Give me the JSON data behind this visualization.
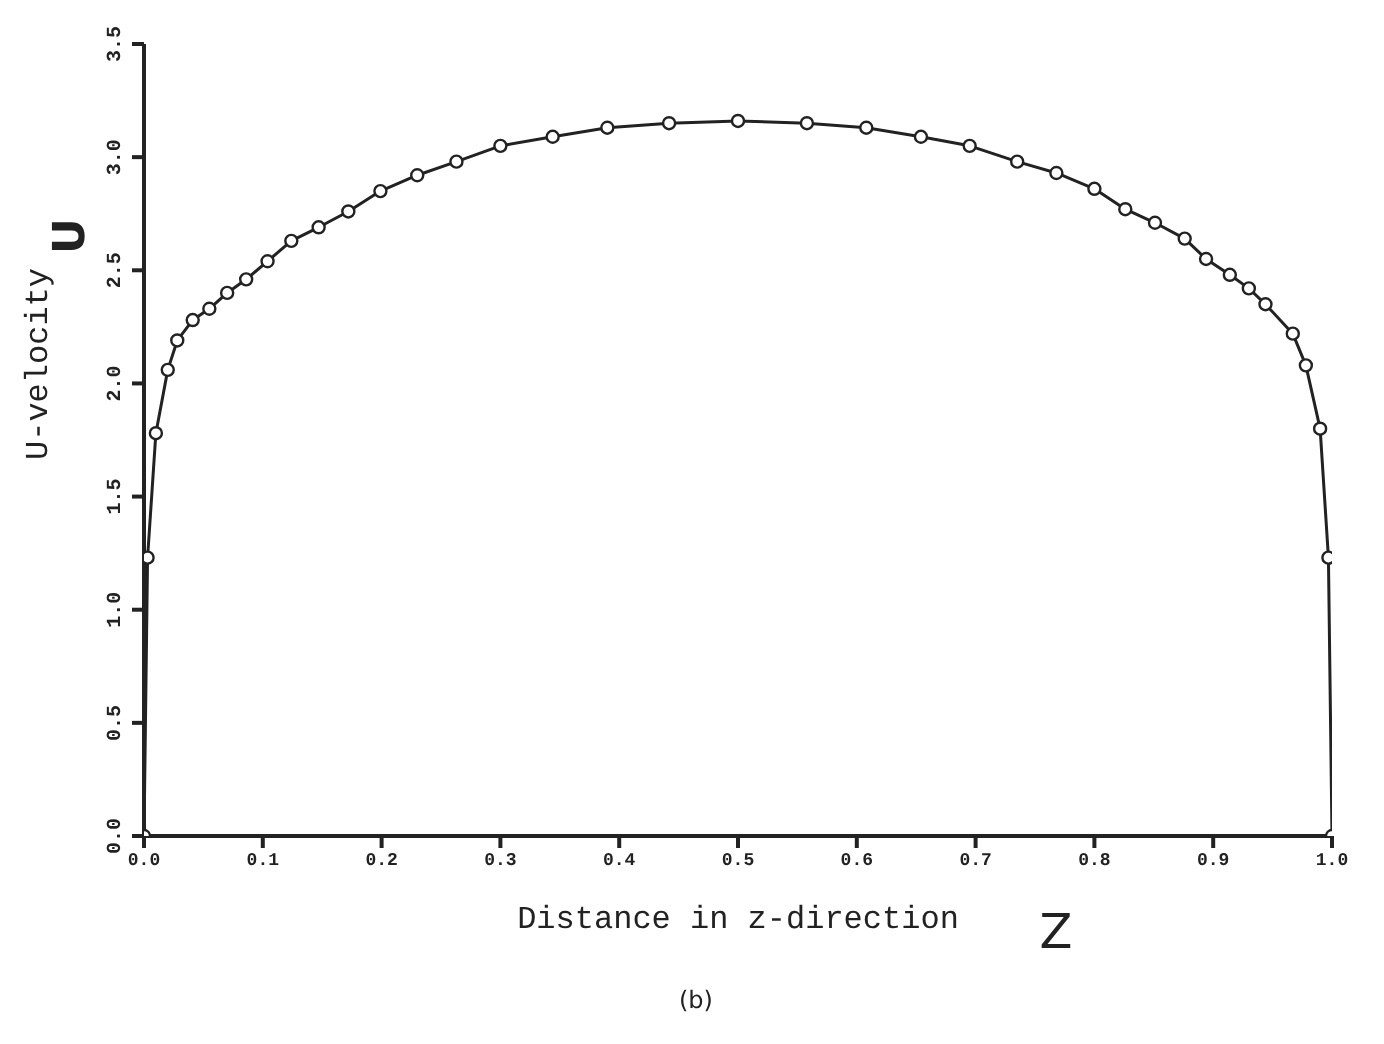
{
  "chart_data": {
    "type": "line",
    "xlabel": "Distance in z-direction",
    "ylabel": "U-velocity",
    "annotations": [
      "U",
      "Z",
      "(b)"
    ],
    "x": [
      0,
      0.003,
      0.01,
      0.02,
      0.028,
      0.041,
      0.055,
      0.07,
      0.086,
      0.104,
      0.124,
      0.147,
      0.172,
      0.199,
      0.23,
      0.263,
      0.3,
      0.344,
      0.39,
      0.442,
      0.5,
      0.558,
      0.608,
      0.654,
      0.695,
      0.735,
      0.768,
      0.8,
      0.826,
      0.851,
      0.876,
      0.894,
      0.914,
      0.93,
      0.944,
      0.967,
      0.978,
      0.99,
      0.997,
      1.0
    ],
    "series": [
      {
        "color": "#222222",
        "values": [
          0,
          1.23,
          1.78,
          2.06,
          2.19,
          2.28,
          2.33,
          2.4,
          2.46,
          2.54,
          2.63,
          2.69,
          2.76,
          2.85,
          2.92,
          2.98,
          3.05,
          3.09,
          3.13,
          3.15,
          3.16,
          3.15,
          3.13,
          3.09,
          3.05,
          2.98,
          2.93,
          2.86,
          2.77,
          2.71,
          2.64,
          2.55,
          2.48,
          2.42,
          2.35,
          2.22,
          2.08,
          1.8,
          1.23,
          0
        ]
      }
    ],
    "xlim": [
      0,
      1
    ],
    "xticks": [
      {
        "value": 0,
        "label": "0.0"
      },
      0.1,
      0.2,
      0.3,
      0.4,
      0.5,
      0.6,
      0.7,
      0.8,
      0.9,
      {
        "value": 1,
        "label": "1.0"
      }
    ],
    "ylim": [
      0,
      3.5
    ],
    "yticks": [
      {
        "value": 0,
        "label": "0.0"
      },
      0.5,
      {
        "value": 1,
        "label": "1.0"
      },
      1.5,
      {
        "value": 2,
        "label": "2.0"
      },
      2.5,
      {
        "value": 3,
        "label": "3.0"
      },
      3.5
    ],
    "grid": false,
    "marker": "circle",
    "line_style": "solid"
  }
}
